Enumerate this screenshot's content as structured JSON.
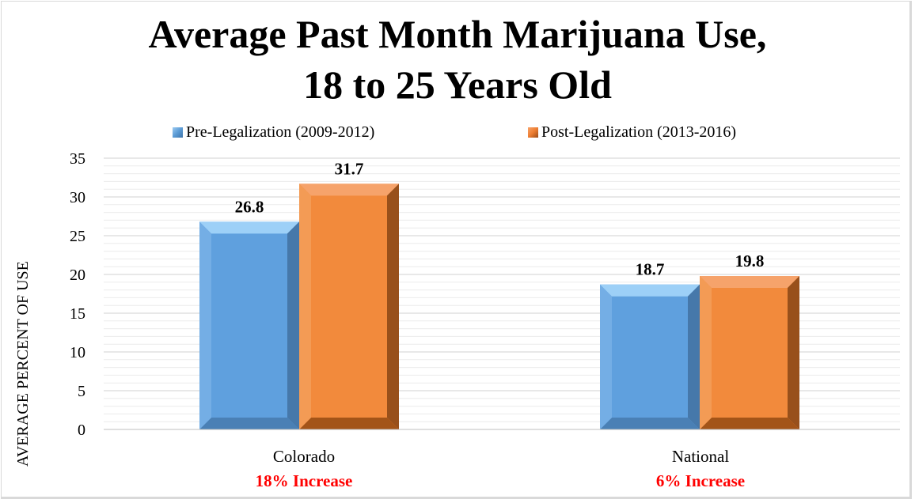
{
  "chart_data": {
    "type": "bar",
    "title": "Average Past Month Marijuana Use,",
    "subtitle": "18 to 25 Years Old",
    "ylabel": "AVERAGE PERCENT OF USE",
    "xlabel": "",
    "ylim": [
      0,
      35
    ],
    "yticks": [
      "0",
      "5",
      "10",
      "15",
      "20",
      "25",
      "30",
      "35"
    ],
    "categories": [
      "Colorado",
      "National"
    ],
    "category_notes": [
      "18% Increase",
      "6% Increase"
    ],
    "series": [
      {
        "name": "Pre-Legalization (2009-2012)",
        "values": [
          26.8,
          18.7
        ],
        "labels": [
          "26.8",
          "18.7"
        ],
        "color": "#5b9bd5"
      },
      {
        "name": "Post-Legalization (2013-2016)",
        "values": [
          31.7,
          19.8
        ],
        "labels": [
          "31.7",
          "19.8"
        ],
        "color": "#ed7d31"
      }
    ],
    "legend_position": "top",
    "grid": true,
    "note_color": "#ff0000"
  }
}
